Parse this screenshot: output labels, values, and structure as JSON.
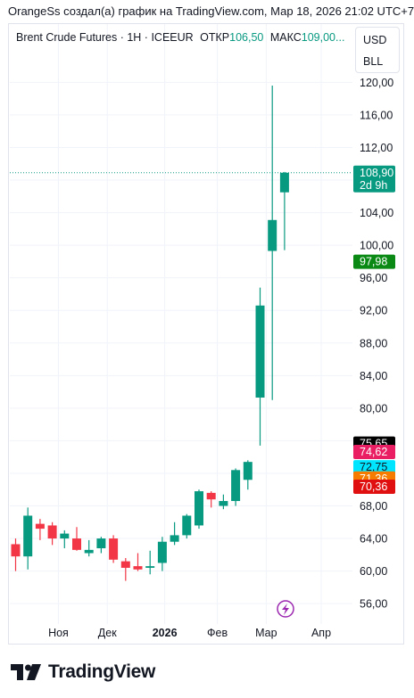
{
  "header": {
    "text": "OrangeSs создал(а) график на TradingView.com, Мар 18, 2026 21:02 UTC+7"
  },
  "legend": {
    "symbol": "Brent Crude Futures · 1H · ICEEUR",
    "open_label": "ОТКР",
    "open_value": "106,50",
    "high_label": "МАКС",
    "high_value": "109,00..."
  },
  "currency": {
    "line1": "USD",
    "line2": "BLL"
  },
  "footer": {
    "brand": "TradingView"
  },
  "colors": {
    "up": "#089981",
    "down": "#f23645",
    "grid": "#f0f3fa"
  },
  "chart_data": {
    "type": "candlestick",
    "y_ticks": [
      "56,00",
      "60,00",
      "64,00",
      "68,00",
      "72,00",
      "76,00",
      "80,00",
      "84,00",
      "88,00",
      "92,00",
      "96,00",
      "100,00",
      "104,00",
      "108,00",
      "112,00",
      "116,00",
      "120,00"
    ],
    "y_tick_values": [
      56,
      60,
      64,
      68,
      72,
      76,
      80,
      84,
      88,
      92,
      96,
      100,
      104,
      108,
      112,
      116,
      120
    ],
    "ylim": [
      53.5,
      124.2
    ],
    "x_labels": [
      "Ноя",
      "Дек",
      "2026",
      "Фев",
      "Мар",
      "Апр"
    ],
    "x_label_bold": [
      false,
      false,
      true,
      false,
      false,
      false
    ],
    "x_label_slot": [
      3.5,
      7.5,
      12.2,
      16.5,
      20.5,
      25
    ],
    "candles": [
      {
        "o": 63.3,
        "h": 64.0,
        "l": 60.0,
        "c": 61.8
      },
      {
        "o": 61.8,
        "h": 67.8,
        "l": 60.2,
        "c": 66.8
      },
      {
        "o": 65.8,
        "h": 66.4,
        "l": 63.8,
        "c": 65.2
      },
      {
        "o": 65.6,
        "h": 66.0,
        "l": 63.2,
        "c": 64.0
      },
      {
        "o": 64.0,
        "h": 65.0,
        "l": 62.8,
        "c": 64.6
      },
      {
        "o": 64.0,
        "h": 65.4,
        "l": 62.5,
        "c": 62.6
      },
      {
        "o": 62.2,
        "h": 63.8,
        "l": 61.8,
        "c": 62.6
      },
      {
        "o": 62.8,
        "h": 64.2,
        "l": 62.2,
        "c": 64.0
      },
      {
        "o": 64.0,
        "h": 64.4,
        "l": 61.0,
        "c": 61.4
      },
      {
        "o": 61.2,
        "h": 61.6,
        "l": 58.8,
        "c": 60.4
      },
      {
        "o": 60.6,
        "h": 62.2,
        "l": 60.0,
        "c": 60.2
      },
      {
        "o": 60.4,
        "h": 62.5,
        "l": 59.6,
        "c": 60.6
      },
      {
        "o": 61.0,
        "h": 64.2,
        "l": 60.0,
        "c": 63.6
      },
      {
        "o": 63.6,
        "h": 66.0,
        "l": 63.2,
        "c": 64.4
      },
      {
        "o": 64.4,
        "h": 67.0,
        "l": 64.0,
        "c": 66.8
      },
      {
        "o": 65.6,
        "h": 70.0,
        "l": 65.2,
        "c": 69.8
      },
      {
        "o": 69.6,
        "h": 69.8,
        "l": 67.8,
        "c": 68.8
      },
      {
        "o": 68.0,
        "h": 69.4,
        "l": 67.6,
        "c": 68.6
      },
      {
        "o": 68.6,
        "h": 72.6,
        "l": 68.0,
        "c": 72.4
      },
      {
        "o": 71.2,
        "h": 73.6,
        "l": 70.0,
        "c": 73.4
      },
      {
        "o": 81.3,
        "h": 94.8,
        "l": 75.4,
        "c": 92.6
      },
      {
        "o": 99.3,
        "h": 119.6,
        "l": 81.0,
        "c": 103.1
      },
      {
        "o": 106.5,
        "h": 109.0,
        "l": 99.4,
        "c": 108.9
      }
    ],
    "price_tags": [
      {
        "value": 108.9,
        "text": "108,90",
        "sub": "2d 9h",
        "color": "#089981"
      },
      {
        "value": 97.98,
        "text": "97,98",
        "color": "#0a8a15"
      },
      {
        "value": 75.65,
        "text": "75,65",
        "color": "#000000"
      },
      {
        "value": 74.62,
        "text": "74,62",
        "color": "#e91e63"
      },
      {
        "value": 72.75,
        "text": "72,75",
        "color": "#00e5ff",
        "textColor": "#131722"
      },
      {
        "value": 71.36,
        "text": "71,36",
        "color": "#f57c00"
      },
      {
        "value": 70.36,
        "text": "70,36",
        "color": "#e01010"
      }
    ]
  }
}
